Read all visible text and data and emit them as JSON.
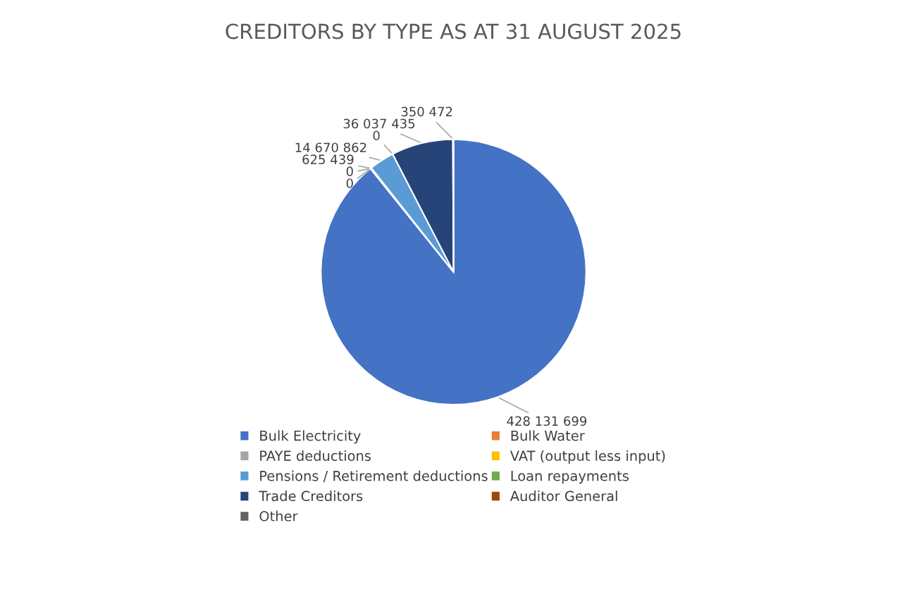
{
  "chart_data": {
    "type": "pie",
    "title": "CREDITORS BY TYPE AS AT 31 AUGUST 2025",
    "categories": [
      "Bulk Electricity",
      "Bulk Water",
      "PAYE deductions",
      "VAT (output less input)",
      "Pensions / Retirement deductions",
      "Loan repayments",
      "Trade Creditors",
      "Auditor General",
      "Other"
    ],
    "values": [
      428131699,
      0,
      0,
      625439,
      14670862,
      0,
      36037435,
      0,
      350472
    ],
    "value_labels": [
      "428 131 699",
      "0",
      "0",
      "625 439",
      "14 670 862",
      "0",
      "36 037 435",
      null,
      "350 472"
    ],
    "colors": [
      "#4472c4",
      "#ed7d31",
      "#a5a5a5",
      "#ffc000",
      "#5b9bd5",
      "#70ad47",
      "#264478",
      "#9e480e",
      "#636363"
    ],
    "legend": "bottom"
  }
}
